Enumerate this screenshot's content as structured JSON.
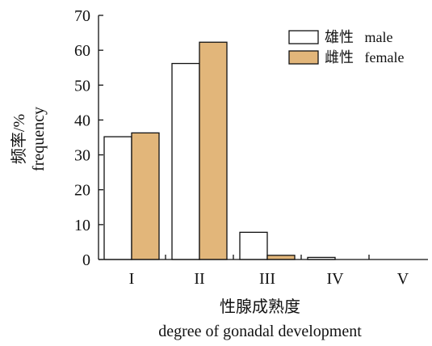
{
  "chart_data": {
    "type": "bar",
    "categories": [
      "I",
      "II",
      "III",
      "IV",
      "V"
    ],
    "series": [
      {
        "name": "雄性   male",
        "values": [
          35.2,
          56.2,
          7.8,
          0.6,
          0
        ]
      },
      {
        "name": "雌性   female",
        "values": [
          36.3,
          62.3,
          1.2,
          0,
          0
        ]
      }
    ],
    "ylim": [
      0,
      70
    ],
    "yticks": [
      0,
      10,
      20,
      30,
      40,
      50,
      60,
      70
    ],
    "ylabel_cn": "频率/%",
    "ylabel_en": "frequency",
    "xlabel_cn": "性腺成熟度",
    "xlabel_en": "degree of gonadal development",
    "legend_position": "top-right",
    "grid": false,
    "colors": {
      "male_fill": "#ffffff",
      "female_fill": "#e2b67a",
      "stroke": "#111111"
    }
  }
}
